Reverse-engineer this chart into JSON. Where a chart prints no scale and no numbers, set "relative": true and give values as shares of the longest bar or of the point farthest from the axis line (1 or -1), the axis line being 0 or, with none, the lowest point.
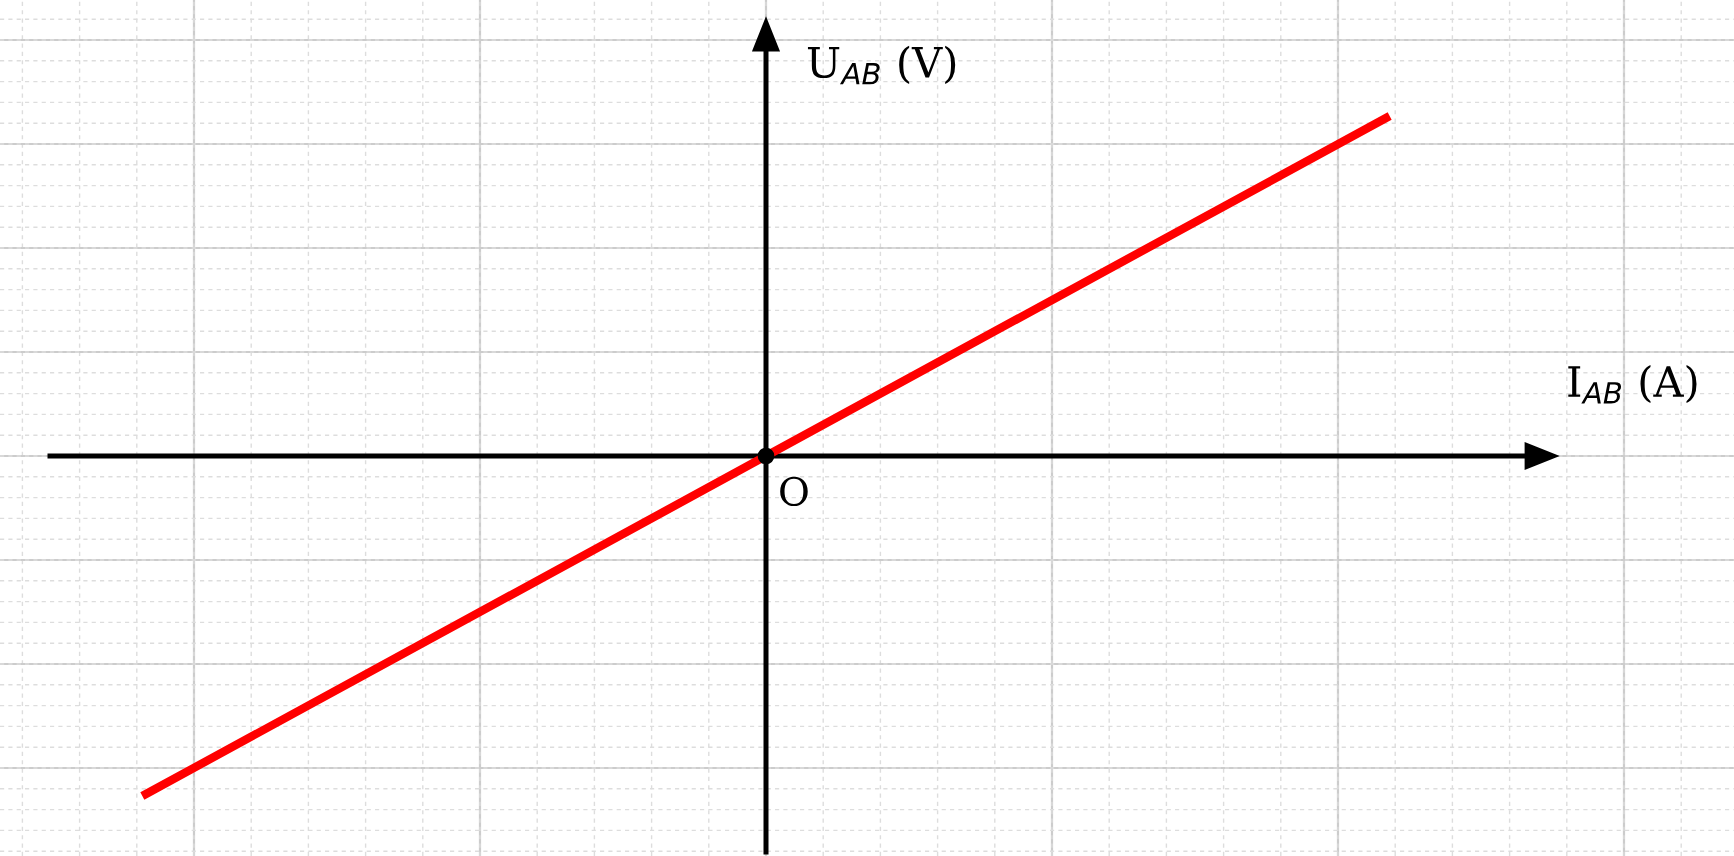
{
  "chart_data": {
    "type": "line",
    "relative": true,
    "xlabel": "I$_{AB}$ (A)",
    "ylabel": "U$_{AB}$ (V)",
    "categories": [
      null,
      null,
      null
    ],
    "series": [
      {
        "color": "#ff0000",
        "values": [
          -1,
          0,
          1
        ]
      }
    ],
    "annotations": [
      "O"
    ],
    "grid": true,
    "marker": "none",
    "line_style": "solid"
  }
}
